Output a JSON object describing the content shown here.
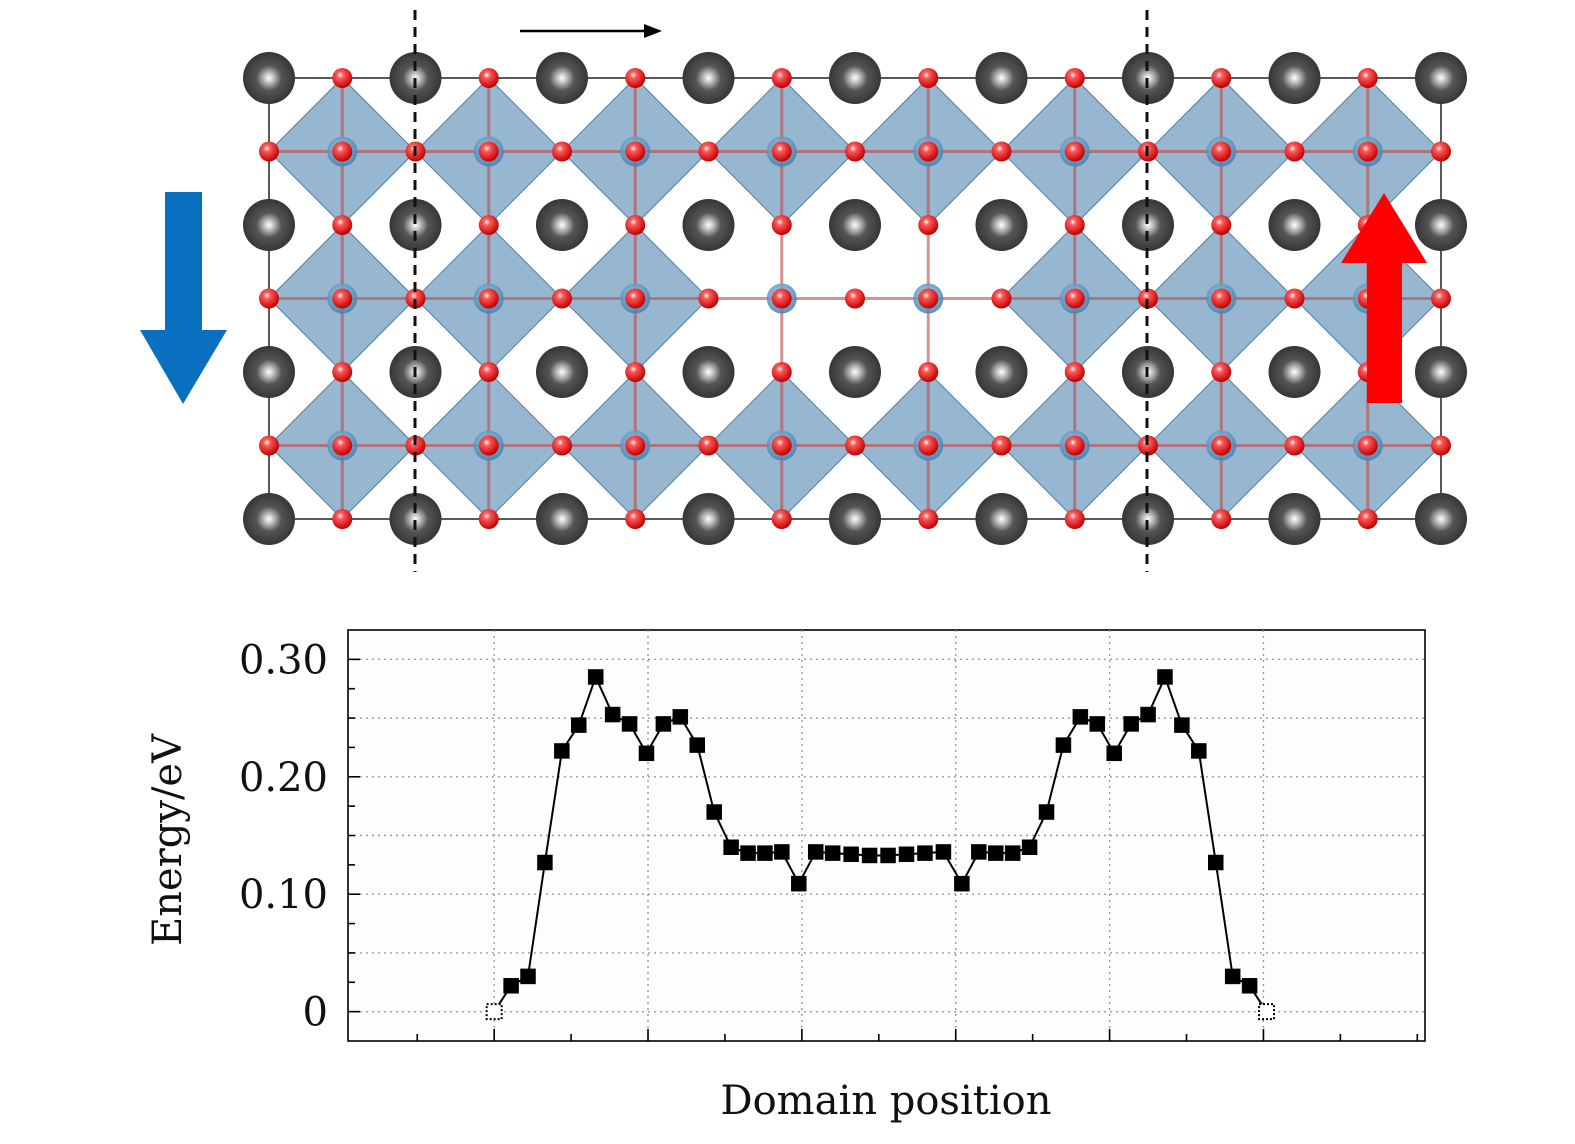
{
  "colors": {
    "octahedron": "#6e9bbd",
    "octahedron_edge": "#4f7fa6",
    "a_site_atom": "#4a4a4a",
    "oxygen_atom": "#e01818",
    "b_site_atom": "#3f7fb0",
    "polarization_down": "#0b6fc0",
    "polarization_up": "#ff0000",
    "line": "#000000",
    "grid": "#9a9a9a"
  },
  "structure": {
    "shift_arrow_icon": "right-arrow-icon",
    "left_polarization_icon": "down-arrow-icon",
    "right_polarization_icon": "up-arrow-icon",
    "lattice_columns": 8,
    "lattice_rows": 3,
    "missing_octahedra_columns": [
      3,
      4
    ],
    "missing_octahedra_row": 1
  },
  "chart_data": {
    "type": "line",
    "xlabel": "Domain position",
    "ylabel": "Energy/eV",
    "ylim": [
      -0.025,
      0.325
    ],
    "yticks": [
      0,
      0.1,
      0.2,
      0.3
    ],
    "ytick_labels": [
      "0",
      "0.10",
      "0.20",
      "0.30"
    ],
    "xlim": [
      -9.5,
      60.5
    ],
    "xticks_major": [
      0,
      10,
      20,
      30,
      40,
      50
    ],
    "grid": true,
    "marker": "square",
    "series": [
      {
        "x": [
          0,
          1.1,
          2.2,
          3.3,
          4.4,
          5.5,
          6.6,
          7.7,
          8.8,
          9.9,
          11,
          12.1,
          13.2,
          14.3,
          15.4,
          16.5,
          17.6,
          18.7,
          19.8,
          20.9,
          22,
          23.2,
          24.4,
          25.6,
          26.8,
          28,
          29.2,
          30.4,
          31.5,
          32.6,
          33.7,
          34.8,
          35.9,
          37,
          38.1,
          39.2,
          40.3,
          41.4,
          42.5,
          43.6,
          44.7,
          45.8,
          46.9,
          48,
          49.1,
          50.2
        ],
        "y": [
          0,
          0.022,
          0.03,
          0.127,
          0.222,
          0.244,
          0.285,
          0.253,
          0.245,
          0.22,
          0.245,
          0.251,
          0.227,
          0.17,
          0.14,
          0.135,
          0.135,
          0.136,
          0.109,
          0.136,
          0.135,
          0.134,
          0.133,
          0.133,
          0.134,
          0.135,
          0.136,
          0.109,
          0.136,
          0.135,
          0.135,
          0.14,
          0.17,
          0.227,
          0.251,
          0.245,
          0.22,
          0.245,
          0.253,
          0.285,
          0.244,
          0.222,
          0.127,
          0.03,
          0.022,
          0
        ]
      }
    ]
  }
}
